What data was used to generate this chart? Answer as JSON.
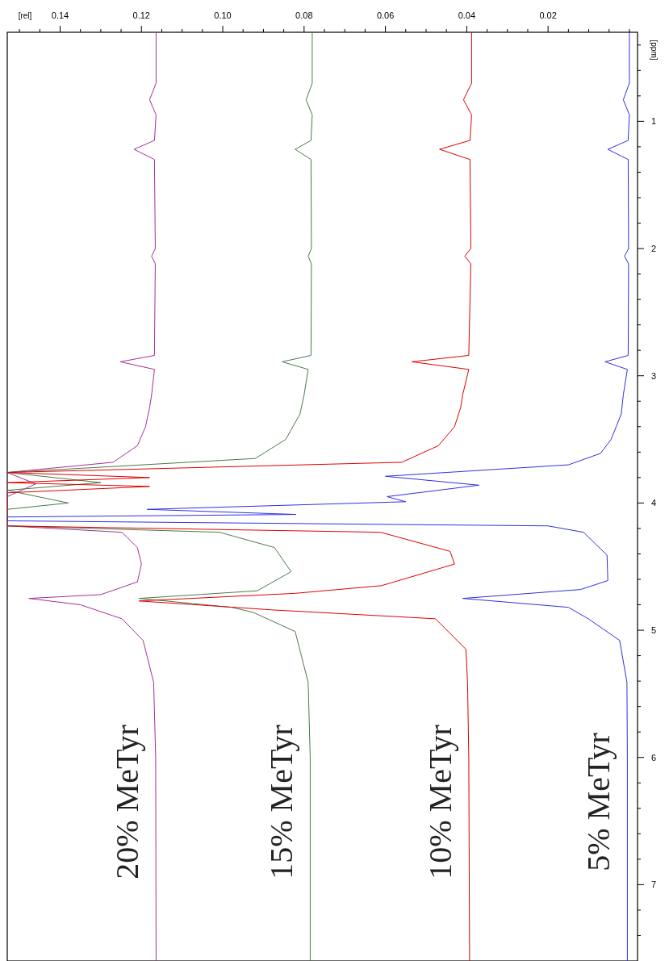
{
  "chart_data": {
    "type": "line",
    "xlabel": "[rel]",
    "ylabel": "[ppm]",
    "xlim": [
      0.153,
      -0.002
    ],
    "ylim": [
      7.6,
      0.3
    ],
    "xticks": [
      {
        "value": 0.02,
        "label": "0.02"
      },
      {
        "value": 0.04,
        "label": "0.04"
      },
      {
        "value": 0.06,
        "label": "0.06"
      },
      {
        "value": 0.08,
        "label": "0.08"
      },
      {
        "value": 0.1,
        "label": "0.10"
      },
      {
        "value": 0.12,
        "label": "0.12"
      },
      {
        "value": 0.14,
        "label": "0.14"
      },
      {
        "value": 0,
        "label": null
      },
      {
        "value": 0.005,
        "label": null
      },
      {
        "value": 0.01,
        "label": null
      },
      {
        "value": 0.015,
        "label": null
      },
      {
        "value": 0.025,
        "label": null
      },
      {
        "value": 0.03,
        "label": null
      },
      {
        "value": 0.035,
        "label": null
      },
      {
        "value": 0.045,
        "label": null
      },
      {
        "value": 0.05,
        "label": null
      },
      {
        "value": 0.055,
        "label": null
      },
      {
        "value": 0.065,
        "label": null
      },
      {
        "value": 0.07,
        "label": null
      },
      {
        "value": 0.075,
        "label": null
      },
      {
        "value": 0.085,
        "label": null
      },
      {
        "value": 0.09,
        "label": null
      },
      {
        "value": 0.095,
        "label": null
      },
      {
        "value": 0.105,
        "label": null
      },
      {
        "value": 0.11,
        "label": null
      },
      {
        "value": 0.115,
        "label": null
      },
      {
        "value": 0.125,
        "label": null
      },
      {
        "value": 0.13,
        "label": null
      },
      {
        "value": 0.135,
        "label": null
      },
      {
        "value": 0.145,
        "label": null
      },
      {
        "value": 0.15,
        "label": null
      }
    ],
    "yticks": [
      {
        "value": 1,
        "label": "1"
      },
      {
        "value": 2,
        "label": "2"
      },
      {
        "value": 3,
        "label": "3"
      },
      {
        "value": 4,
        "label": "4"
      },
      {
        "value": 5,
        "label": "5"
      },
      {
        "value": 6,
        "label": "6"
      },
      {
        "value": 7,
        "label": "7"
      },
      {
        "value": 0.4,
        "label": null
      },
      {
        "value": 0.6,
        "label": null
      },
      {
        "value": 0.8,
        "label": null
      },
      {
        "value": 1.2,
        "label": null
      },
      {
        "value": 1.4,
        "label": null
      },
      {
        "value": 1.6,
        "label": null
      },
      {
        "value": 1.8,
        "label": null
      },
      {
        "value": 2.2,
        "label": null
      },
      {
        "value": 2.4,
        "label": null
      },
      {
        "value": 2.6,
        "label": null
      },
      {
        "value": 2.8,
        "label": null
      },
      {
        "value": 3.2,
        "label": null
      },
      {
        "value": 3.4,
        "label": null
      },
      {
        "value": 3.6,
        "label": null
      },
      {
        "value": 3.8,
        "label": null
      },
      {
        "value": 4.2,
        "label": null
      },
      {
        "value": 4.4,
        "label": null
      },
      {
        "value": 4.6,
        "label": null
      },
      {
        "value": 4.8,
        "label": null
      },
      {
        "value": 5.2,
        "label": null
      },
      {
        "value": 5.4,
        "label": null
      },
      {
        "value": 5.6,
        "label": null
      },
      {
        "value": 5.8,
        "label": null
      },
      {
        "value": 6.2,
        "label": null
      },
      {
        "value": 6.4,
        "label": null
      },
      {
        "value": 6.6,
        "label": null
      },
      {
        "value": 6.8,
        "label": null
      },
      {
        "value": 7.2,
        "label": null
      },
      {
        "value": 7.4,
        "label": null
      }
    ],
    "grid": false,
    "legend": false,
    "marker": "none",
    "line_style": "solid",
    "series": [
      {
        "name": "20% MeTyr",
        "color": "#a0309a",
        "values": [
          0.3,
          0.7,
          0.83,
          0.95,
          1.15,
          1.22,
          1.3,
          2.0,
          2.06,
          2.12,
          2.84,
          2.89,
          2.95,
          3.15,
          3.25,
          3.4,
          3.55,
          3.68,
          3.76,
          3.85,
          3.95,
          4.18,
          4.23,
          4.35,
          4.48,
          4.62,
          4.72,
          4.75,
          4.8,
          4.91,
          5.08,
          5.41,
          6.0,
          7.6
        ],
        "x": [
          0.1164,
          0.1164,
          0.118,
          0.1164,
          0.1168,
          0.1218,
          0.1168,
          0.1166,
          0.1175,
          0.1166,
          0.1168,
          0.1252,
          0.1168,
          0.1175,
          0.118,
          0.119,
          0.121,
          0.127,
          0.153,
          0.146,
          0.153,
          0.153,
          0.1248,
          0.121,
          0.12,
          0.121,
          0.13,
          0.1477,
          0.135,
          0.1248,
          0.1196,
          0.117,
          0.1165,
          0.1164
        ]
      },
      {
        "name": "15% MeTyr",
        "color": "#4a7a4a",
        "values": [
          0.3,
          0.7,
          0.83,
          0.95,
          1.15,
          1.22,
          1.3,
          2.0,
          2.06,
          2.12,
          2.84,
          2.89,
          2.95,
          3.15,
          3.3,
          3.5,
          3.65,
          3.76,
          3.84,
          3.9,
          4.0,
          4.05,
          4.18,
          4.23,
          4.35,
          4.54,
          4.69,
          4.75,
          4.82,
          4.86,
          5.01,
          5.41,
          6.0,
          7.6
        ],
        "x": [
          0.078,
          0.078,
          0.0795,
          0.078,
          0.0783,
          0.0822,
          0.0783,
          0.0782,
          0.079,
          0.0782,
          0.0783,
          0.0854,
          0.079,
          0.08,
          0.081,
          0.0845,
          0.092,
          0.153,
          0.13,
          0.153,
          0.138,
          0.153,
          0.153,
          0.1008,
          0.0873,
          0.0832,
          0.0915,
          0.1206,
          0.0978,
          0.0925,
          0.0822,
          0.079,
          0.0785,
          0.0785
        ]
      },
      {
        "name": "10% MeTyr",
        "color": "#e00000",
        "values": [
          0.3,
          0.7,
          0.83,
          0.95,
          1.15,
          1.22,
          1.3,
          2.0,
          2.06,
          2.12,
          2.84,
          2.89,
          2.95,
          3.15,
          3.25,
          3.4,
          3.55,
          3.68,
          3.76,
          3.8,
          3.84,
          3.87,
          3.92,
          4.18,
          4.23,
          4.38,
          4.48,
          4.65,
          4.71,
          4.77,
          4.84,
          4.91,
          5.15,
          5.41,
          6.0,
          7.6
        ],
        "x": [
          0.0388,
          0.0388,
          0.0408,
          0.0388,
          0.0392,
          0.0467,
          0.0392,
          0.039,
          0.0405,
          0.039,
          0.0395,
          0.0535,
          0.0395,
          0.041,
          0.0415,
          0.043,
          0.047,
          0.056,
          0.153,
          0.118,
          0.153,
          0.118,
          0.153,
          0.153,
          0.0612,
          0.0441,
          0.043,
          0.061,
          0.0822,
          0.1206,
          0.088,
          0.0477,
          0.0402,
          0.0398,
          0.0395,
          0.0393
        ]
      },
      {
        "name": "5% MeTyr",
        "color": "#3030e0",
        "values": [
          0.3,
          0.7,
          0.83,
          0.95,
          1.15,
          1.22,
          1.3,
          2.0,
          2.06,
          2.12,
          2.84,
          2.89,
          2.95,
          3.15,
          3.3,
          3.5,
          3.61,
          3.7,
          3.76,
          3.79,
          3.86,
          3.95,
          3.99,
          4.05,
          4.09,
          4.11,
          4.14,
          4.18,
          4.23,
          4.41,
          4.61,
          4.68,
          4.75,
          4.82,
          4.91,
          5.08,
          5.41,
          6.0,
          7.6
        ],
        "x": [
          0.0,
          0.0,
          0.0015,
          0.0,
          0.0003,
          0.0053,
          0.0003,
          0.0002,
          0.0012,
          0.0002,
          0.0003,
          0.006,
          0.0005,
          0.0015,
          0.002,
          0.0045,
          0.0071,
          0.015,
          0.045,
          0.06,
          0.037,
          0.0596,
          0.055,
          0.1186,
          0.082,
          0.153,
          0.153,
          0.02,
          0.0113,
          0.0055,
          0.0053,
          0.012,
          0.041,
          0.015,
          0.0101,
          0.0024,
          0.0006,
          0.0005,
          0.0005
        ]
      }
    ]
  }
}
